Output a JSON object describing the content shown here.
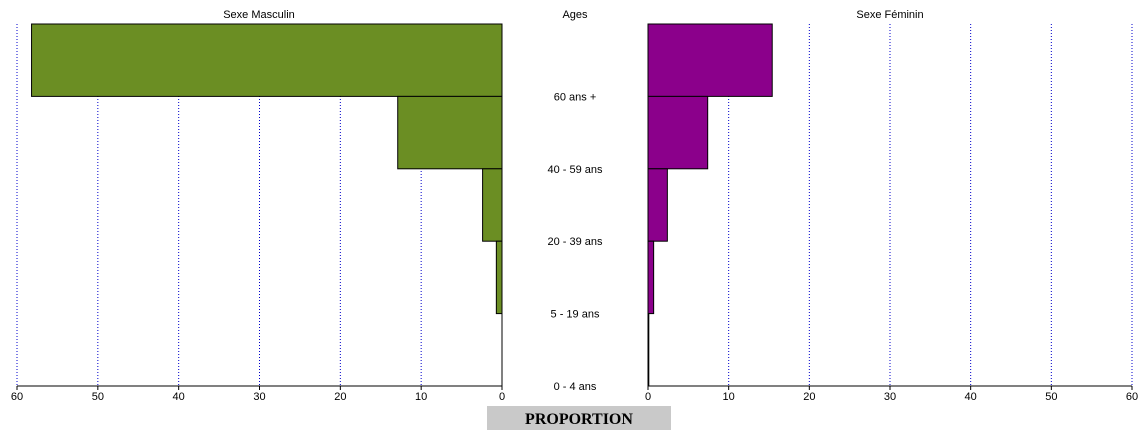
{
  "chart_data": {
    "type": "bar",
    "orientation": "horizontal-population-pyramid",
    "xlabel": "PROPORTION",
    "center_header": "Ages",
    "categories_top_to_bottom": [
      "60 ans +",
      "40 - 59 ans",
      "20 - 39 ans",
      "5 - 19 ans",
      "0 - 4 ans"
    ],
    "xlim": [
      0,
      60
    ],
    "xticks": [
      0,
      10,
      20,
      30,
      40,
      50,
      60
    ],
    "grid": "vertical dotted",
    "series": [
      {
        "name": "Sexe Masculin",
        "color": "#6b8e23",
        "values": [
          58.2,
          12.9,
          2.4,
          0.7,
          0.0
        ]
      },
      {
        "name": "Sexe Féminin",
        "color": "#8b008b",
        "values": [
          15.4,
          7.4,
          2.4,
          0.7,
          0.1
        ]
      }
    ]
  }
}
